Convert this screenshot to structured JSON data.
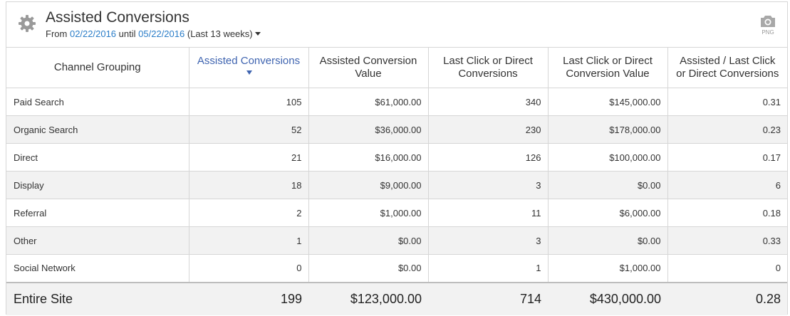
{
  "widget": {
    "title": "Assisted Conversions",
    "date_prefix": "From",
    "start_date": "02/22/2016",
    "until_word": "until",
    "end_date": "05/22/2016",
    "range_label": "(Last 13 weeks)",
    "export_label": "PNG",
    "icons": {
      "settings": "gear-icon",
      "export": "camera-icon",
      "range": "caret-down-icon"
    }
  },
  "table": {
    "columns": [
      "Channel Grouping",
      "Assisted Conversions",
      "Assisted Conversion Value",
      "Last Click or Direct Conversions",
      "Last Click or Direct Conversion Value",
      "Assisted / Last Click or Direct Conversions"
    ],
    "sorted_column": "Assisted Conversions",
    "rows": [
      [
        "Paid Search",
        "105",
        "$61,000.00",
        "340",
        "$145,000.00",
        "0.31"
      ],
      [
        "Organic Search",
        "52",
        "$36,000.00",
        "230",
        "$178,000.00",
        "0.23"
      ],
      [
        "Direct",
        "21",
        "$16,000.00",
        "126",
        "$100,000.00",
        "0.17"
      ],
      [
        "Display",
        "18",
        "$9,000.00",
        "3",
        "$0.00",
        "6"
      ],
      [
        "Referral",
        "2",
        "$1,000.00",
        "11",
        "$6,000.00",
        "0.18"
      ],
      [
        "Other",
        "1",
        "$0.00",
        "3",
        "$0.00",
        "0.33"
      ],
      [
        "Social Network",
        "0",
        "$0.00",
        "1",
        "$1,000.00",
        "0"
      ]
    ],
    "total": [
      "Entire Site",
      "199",
      "$123,000.00",
      "714",
      "$430,000.00",
      "0.28"
    ]
  },
  "colors": {
    "link": "#2a7dc8",
    "sorted_header": "#3f64b0",
    "stripe": "#f2f2f2",
    "border": "#d6d6d6"
  }
}
